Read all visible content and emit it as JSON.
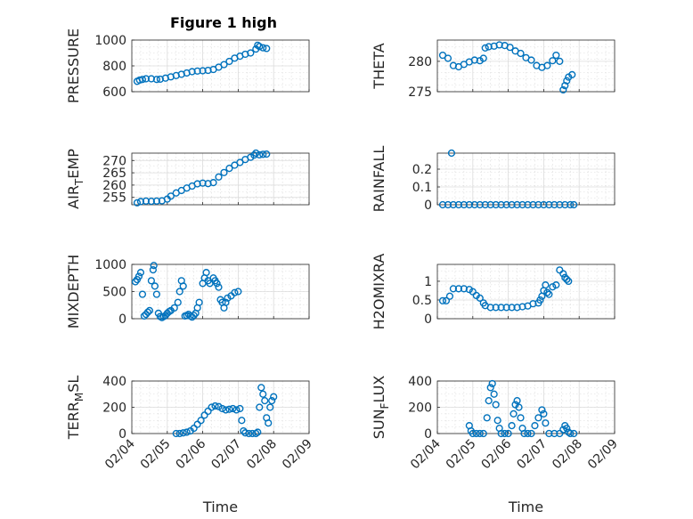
{
  "figure_title": "Figure 1 high",
  "colors": {
    "marker": "#0072BD",
    "axis": "#262626"
  },
  "chart_data": [
    {
      "type": "scatter",
      "name": "pressure",
      "title": "Figure 1 high",
      "ylabel": "PRESSURE",
      "ylabel_sub": "",
      "ylabel_tail": "",
      "ylim": [
        600,
        1000
      ],
      "yticks": [
        600,
        800,
        1000
      ],
      "xlim": [
        0,
        5
      ],
      "xticks": [],
      "points": [
        [
          0.15,
          680
        ],
        [
          0.22,
          690
        ],
        [
          0.3,
          695
        ],
        [
          0.4,
          700
        ],
        [
          0.55,
          700
        ],
        [
          0.7,
          695
        ],
        [
          0.8,
          697
        ],
        [
          0.95,
          705
        ],
        [
          1.1,
          715
        ],
        [
          1.25,
          725
        ],
        [
          1.4,
          735
        ],
        [
          1.55,
          745
        ],
        [
          1.7,
          755
        ],
        [
          1.85,
          760
        ],
        [
          2.0,
          762
        ],
        [
          2.15,
          765
        ],
        [
          2.3,
          772
        ],
        [
          2.45,
          790
        ],
        [
          2.6,
          810
        ],
        [
          2.75,
          835
        ],
        [
          2.9,
          860
        ],
        [
          3.05,
          875
        ],
        [
          3.2,
          890
        ],
        [
          3.35,
          900
        ],
        [
          3.5,
          930
        ],
        [
          3.55,
          960
        ],
        [
          3.6,
          950
        ],
        [
          3.7,
          940
        ],
        [
          3.8,
          935
        ]
      ]
    },
    {
      "type": "scatter",
      "name": "theta",
      "ylabel": "THETA",
      "ylabel_sub": "",
      "ylabel_tail": "",
      "ylim": [
        275,
        283.5
      ],
      "yticks": [
        275,
        280
      ],
      "xlim": [
        0,
        5
      ],
      "xticks": [],
      "points": [
        [
          0.15,
          281
        ],
        [
          0.3,
          280.5
        ],
        [
          0.45,
          279.3
        ],
        [
          0.6,
          279.1
        ],
        [
          0.75,
          279.5
        ],
        [
          0.9,
          279.9
        ],
        [
          1.05,
          280.2
        ],
        [
          1.2,
          280.1
        ],
        [
          1.3,
          280.5
        ],
        [
          1.35,
          282.2
        ],
        [
          1.45,
          282.4
        ],
        [
          1.6,
          282.5
        ],
        [
          1.75,
          282.7
        ],
        [
          1.9,
          282.6
        ],
        [
          2.05,
          282.3
        ],
        [
          2.2,
          281.7
        ],
        [
          2.35,
          281.3
        ],
        [
          2.5,
          280.6
        ],
        [
          2.65,
          280.2
        ],
        [
          2.8,
          279.3
        ],
        [
          2.95,
          279.0
        ],
        [
          3.1,
          279.3
        ],
        [
          3.25,
          280.1
        ],
        [
          3.35,
          281.0
        ],
        [
          3.45,
          280.0
        ],
        [
          3.55,
          275.3
        ],
        [
          3.6,
          276.0
        ],
        [
          3.65,
          276.8
        ],
        [
          3.7,
          277.4
        ],
        [
          3.8,
          277.8
        ]
      ]
    },
    {
      "type": "scatter",
      "name": "air_temp",
      "ylabel": "AIR",
      "ylabel_sub": "T",
      "ylabel_tail": "EMP",
      "ylim": [
        252,
        273
      ],
      "yticks": [
        255,
        260,
        265,
        270
      ],
      "xlim": [
        0,
        5
      ],
      "xticks": [],
      "points": [
        [
          0.15,
          252.8
        ],
        [
          0.25,
          253.3
        ],
        [
          0.4,
          253.5
        ],
        [
          0.55,
          253.4
        ],
        [
          0.7,
          253.5
        ],
        [
          0.85,
          253.6
        ],
        [
          1.0,
          254.3
        ],
        [
          1.1,
          255.5
        ],
        [
          1.25,
          256.8
        ],
        [
          1.4,
          257.8
        ],
        [
          1.55,
          258.8
        ],
        [
          1.7,
          259.6
        ],
        [
          1.85,
          260.5
        ],
        [
          2.0,
          260.8
        ],
        [
          2.15,
          260.6
        ],
        [
          2.3,
          261.0
        ],
        [
          2.45,
          263.3
        ],
        [
          2.6,
          265.1
        ],
        [
          2.75,
          266.8
        ],
        [
          2.9,
          268.1
        ],
        [
          3.05,
          269.2
        ],
        [
          3.2,
          270.4
        ],
        [
          3.35,
          271.3
        ],
        [
          3.45,
          272.2
        ],
        [
          3.5,
          273.0
        ],
        [
          3.6,
          272.3
        ],
        [
          3.7,
          272.5
        ],
        [
          3.8,
          272.6
        ]
      ]
    },
    {
      "type": "scatter",
      "name": "rainfall",
      "ylabel": "RAINFALL",
      "ylabel_sub": "",
      "ylabel_tail": "",
      "ylim": [
        0,
        0.29
      ],
      "yticks": [
        0,
        0.1,
        0.2
      ],
      "xlim": [
        0,
        5
      ],
      "xticks": [],
      "points": [
        [
          0.15,
          0
        ],
        [
          0.3,
          0
        ],
        [
          0.4,
          0.29
        ],
        [
          0.45,
          0
        ],
        [
          0.6,
          0
        ],
        [
          0.75,
          0
        ],
        [
          0.9,
          0
        ],
        [
          1.05,
          0
        ],
        [
          1.2,
          0
        ],
        [
          1.35,
          0
        ],
        [
          1.5,
          0
        ],
        [
          1.65,
          0
        ],
        [
          1.8,
          0
        ],
        [
          1.95,
          0
        ],
        [
          2.1,
          0
        ],
        [
          2.25,
          0
        ],
        [
          2.4,
          0
        ],
        [
          2.55,
          0
        ],
        [
          2.7,
          0
        ],
        [
          2.85,
          0
        ],
        [
          3.0,
          0
        ],
        [
          3.15,
          0
        ],
        [
          3.3,
          0
        ],
        [
          3.45,
          0
        ],
        [
          3.6,
          0
        ],
        [
          3.75,
          0
        ],
        [
          3.85,
          0
        ]
      ]
    },
    {
      "type": "scatter",
      "name": "mixdepth",
      "ylabel": "MIXDEPTH",
      "ylabel_sub": "",
      "ylabel_tail": "",
      "ylim": [
        0,
        1000
      ],
      "yticks": [
        0,
        500,
        1000
      ],
      "xlim": [
        0,
        5
      ],
      "xticks": [],
      "points": [
        [
          0.1,
          680
        ],
        [
          0.15,
          720
        ],
        [
          0.2,
          780
        ],
        [
          0.25,
          850
        ],
        [
          0.3,
          450
        ],
        [
          0.35,
          50
        ],
        [
          0.4,
          80
        ],
        [
          0.45,
          120
        ],
        [
          0.5,
          150
        ],
        [
          0.55,
          700
        ],
        [
          0.6,
          900
        ],
        [
          0.62,
          980
        ],
        [
          0.65,
          600
        ],
        [
          0.7,
          450
        ],
        [
          0.75,
          100
        ],
        [
          0.8,
          40
        ],
        [
          0.85,
          20
        ],
        [
          0.9,
          40
        ],
        [
          0.95,
          60
        ],
        [
          1.0,
          100
        ],
        [
          1.05,
          130
        ],
        [
          1.1,
          150
        ],
        [
          1.2,
          200
        ],
        [
          1.3,
          300
        ],
        [
          1.35,
          500
        ],
        [
          1.4,
          700
        ],
        [
          1.45,
          600
        ],
        [
          1.5,
          50
        ],
        [
          1.55,
          60
        ],
        [
          1.6,
          80
        ],
        [
          1.65,
          50
        ],
        [
          1.7,
          30
        ],
        [
          1.75,
          60
        ],
        [
          1.8,
          100
        ],
        [
          1.85,
          200
        ],
        [
          1.9,
          300
        ],
        [
          2.0,
          650
        ],
        [
          2.05,
          750
        ],
        [
          2.1,
          850
        ],
        [
          2.15,
          700
        ],
        [
          2.2,
          650
        ],
        [
          2.3,
          750
        ],
        [
          2.35,
          700
        ],
        [
          2.4,
          650
        ],
        [
          2.45,
          580
        ],
        [
          2.5,
          350
        ],
        [
          2.55,
          300
        ],
        [
          2.6,
          200
        ],
        [
          2.65,
          300
        ],
        [
          2.7,
          380
        ],
        [
          2.8,
          420
        ],
        [
          2.9,
          480
        ],
        [
          3.0,
          500
        ]
      ]
    },
    {
      "type": "scatter",
      "name": "h2omixra",
      "ylabel": "H2OMIXRA",
      "ylabel_sub": "",
      "ylabel_tail": "",
      "ylim": [
        0,
        1.45
      ],
      "yticks": [
        0,
        0.5,
        1
      ],
      "xlim": [
        0,
        5
      ],
      "xticks": [],
      "points": [
        [
          0.15,
          0.48
        ],
        [
          0.25,
          0.48
        ],
        [
          0.35,
          0.6
        ],
        [
          0.45,
          0.8
        ],
        [
          0.6,
          0.8
        ],
        [
          0.75,
          0.8
        ],
        [
          0.9,
          0.78
        ],
        [
          1.0,
          0.72
        ],
        [
          1.1,
          0.62
        ],
        [
          1.2,
          0.55
        ],
        [
          1.3,
          0.42
        ],
        [
          1.35,
          0.35
        ],
        [
          1.5,
          0.3
        ],
        [
          1.65,
          0.3
        ],
        [
          1.8,
          0.3
        ],
        [
          1.95,
          0.3
        ],
        [
          2.1,
          0.3
        ],
        [
          2.25,
          0.3
        ],
        [
          2.4,
          0.32
        ],
        [
          2.55,
          0.34
        ],
        [
          2.7,
          0.4
        ],
        [
          2.85,
          0.42
        ],
        [
          2.9,
          0.5
        ],
        [
          2.95,
          0.6
        ],
        [
          3.0,
          0.75
        ],
        [
          3.05,
          0.9
        ],
        [
          3.1,
          0.7
        ],
        [
          3.15,
          0.65
        ],
        [
          3.25,
          0.85
        ],
        [
          3.35,
          0.9
        ],
        [
          3.45,
          1.3
        ],
        [
          3.55,
          1.2
        ],
        [
          3.6,
          1.1
        ],
        [
          3.65,
          1.05
        ],
        [
          3.7,
          1.0
        ]
      ]
    },
    {
      "type": "scatter",
      "name": "terr_msl",
      "ylabel": "TERR",
      "ylabel_sub": "M",
      "ylabel_tail": "SL",
      "ylim": [
        0,
        400
      ],
      "yticks": [
        0,
        200,
        400
      ],
      "xlim": [
        0,
        5
      ],
      "xticks": [
        {
          "v": 0,
          "label": "02/04"
        },
        {
          "v": 1,
          "label": "02/05"
        },
        {
          "v": 2,
          "label": "02/06"
        },
        {
          "v": 3,
          "label": "02/07"
        },
        {
          "v": 4,
          "label": "02/08"
        },
        {
          "v": 5,
          "label": "02/09"
        }
      ],
      "xlabel": "Time",
      "points": [
        [
          1.25,
          0
        ],
        [
          1.35,
          0
        ],
        [
          1.45,
          5
        ],
        [
          1.55,
          10
        ],
        [
          1.65,
          20
        ],
        [
          1.75,
          40
        ],
        [
          1.85,
          70
        ],
        [
          1.95,
          100
        ],
        [
          2.05,
          140
        ],
        [
          2.15,
          170
        ],
        [
          2.25,
          200
        ],
        [
          2.35,
          210
        ],
        [
          2.45,
          205
        ],
        [
          2.55,
          190
        ],
        [
          2.65,
          180
        ],
        [
          2.75,
          185
        ],
        [
          2.85,
          190
        ],
        [
          2.95,
          180
        ],
        [
          3.05,
          190
        ],
        [
          3.1,
          100
        ],
        [
          3.15,
          20
        ],
        [
          3.2,
          5
        ],
        [
          3.3,
          0
        ],
        [
          3.4,
          0
        ],
        [
          3.5,
          0
        ],
        [
          3.55,
          10
        ],
        [
          3.6,
          200
        ],
        [
          3.65,
          350
        ],
        [
          3.7,
          300
        ],
        [
          3.75,
          250
        ],
        [
          3.8,
          120
        ],
        [
          3.85,
          80
        ],
        [
          3.9,
          200
        ],
        [
          3.95,
          250
        ],
        [
          4.0,
          280
        ]
      ]
    },
    {
      "type": "scatter",
      "name": "sun_flux",
      "ylabel": "SUN",
      "ylabel_sub": "F",
      "ylabel_tail": "LUX",
      "ylim": [
        0,
        400
      ],
      "yticks": [
        0,
        200,
        400
      ],
      "xlim": [
        0,
        5
      ],
      "xticks": [
        {
          "v": 0,
          "label": "02/04"
        },
        {
          "v": 1,
          "label": "02/05"
        },
        {
          "v": 2,
          "label": "02/06"
        },
        {
          "v": 3,
          "label": "02/07"
        },
        {
          "v": 4,
          "label": "02/08"
        },
        {
          "v": 5,
          "label": "02/09"
        }
      ],
      "xlabel": "Time",
      "points": [
        [
          0.9,
          60
        ],
        [
          0.95,
          20
        ],
        [
          1.0,
          0
        ],
        [
          1.1,
          0
        ],
        [
          1.2,
          0
        ],
        [
          1.3,
          0
        ],
        [
          1.4,
          120
        ],
        [
          1.45,
          250
        ],
        [
          1.5,
          350
        ],
        [
          1.55,
          380
        ],
        [
          1.6,
          300
        ],
        [
          1.65,
          220
        ],
        [
          1.7,
          100
        ],
        [
          1.75,
          40
        ],
        [
          1.8,
          0
        ],
        [
          1.9,
          0
        ],
        [
          2.0,
          0
        ],
        [
          2.1,
          60
        ],
        [
          2.15,
          150
        ],
        [
          2.2,
          220
        ],
        [
          2.25,
          250
        ],
        [
          2.3,
          200
        ],
        [
          2.35,
          120
        ],
        [
          2.4,
          40
        ],
        [
          2.45,
          0
        ],
        [
          2.55,
          0
        ],
        [
          2.65,
          0
        ],
        [
          2.75,
          60
        ],
        [
          2.85,
          120
        ],
        [
          2.95,
          180
        ],
        [
          3.0,
          150
        ],
        [
          3.05,
          80
        ],
        [
          3.15,
          0
        ],
        [
          3.3,
          0
        ],
        [
          3.45,
          0
        ],
        [
          3.55,
          30
        ],
        [
          3.6,
          60
        ],
        [
          3.65,
          40
        ],
        [
          3.7,
          10
        ],
        [
          3.75,
          0
        ],
        [
          3.85,
          0
        ]
      ]
    }
  ]
}
